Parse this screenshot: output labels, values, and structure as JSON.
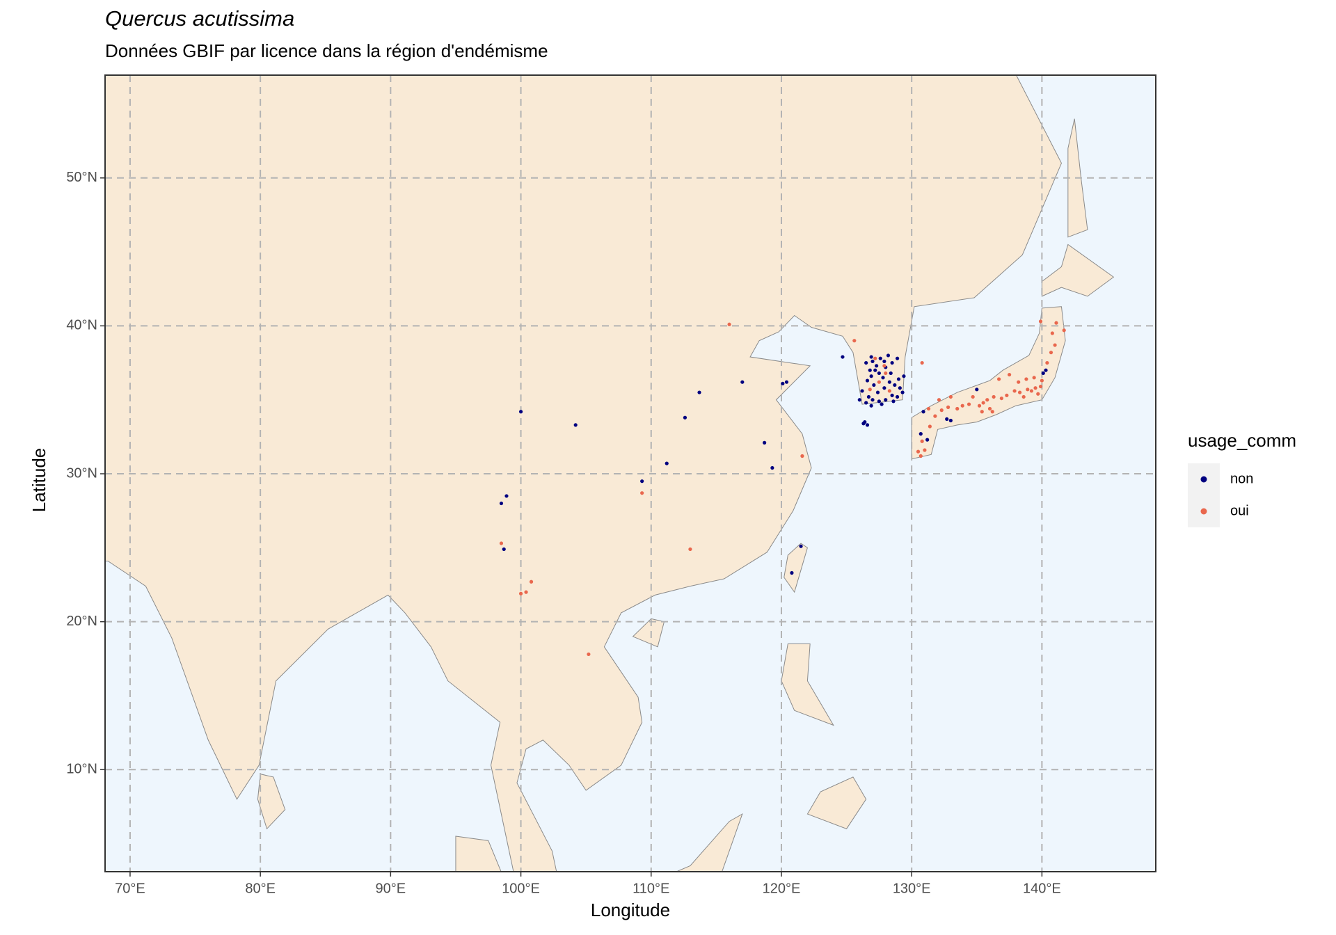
{
  "chart_data": {
    "type": "scatter",
    "title": "Quercus acutissima",
    "subtitle": "Données GBIF par licence dans la région d'endémisme",
    "x_label": "Longitude",
    "y_label": "Latitude",
    "legend_title": "usage_comm",
    "legend_position": "right",
    "grid": true,
    "xlim": [
      68.08,
      148.74
    ],
    "ylim": [
      3.1,
      56.95
    ],
    "xticks": [
      {
        "value": 70,
        "label": "70°E"
      },
      {
        "value": 80,
        "label": "80°E"
      },
      {
        "value": 90,
        "label": "90°E"
      },
      {
        "value": 100,
        "label": "100°E"
      },
      {
        "value": 110,
        "label": "110°E"
      },
      {
        "value": 120,
        "label": "120°E"
      },
      {
        "value": 130,
        "label": "130°E"
      },
      {
        "value": 140,
        "label": "140°E"
      }
    ],
    "yticks": [
      {
        "value": 10,
        "label": "10°N"
      },
      {
        "value": 20,
        "label": "20°N"
      },
      {
        "value": 30,
        "label": "30°N"
      },
      {
        "value": 40,
        "label": "40°N"
      },
      {
        "value": 50,
        "label": "50°N"
      }
    ],
    "series": [
      {
        "name": "non",
        "color": "#000080",
        "x": [
          126.5,
          127.0,
          127.3,
          126.8,
          127.5,
          128.0,
          128.5,
          128.9,
          127.8,
          128.3,
          128.7,
          129.1,
          129.3,
          128.9,
          128.5,
          128.0,
          127.5,
          127.0,
          126.7,
          126.5,
          126.9,
          127.4,
          127.9,
          126.6,
          127.1,
          126.9,
          127.6,
          128.2,
          127.9,
          126.9,
          126.3,
          126.6,
          126.4,
          127.2,
          128.4,
          129.0,
          129.4,
          126.2,
          126.0,
          127.7,
          128.6,
          100.0,
          104.2,
          113.7,
          112.6,
          117.0,
          111.2,
          109.3,
          118.7,
          119.3,
          98.9,
          98.5,
          98.7,
          120.1,
          120.4,
          121.5,
          120.8,
          124.7,
          130.9,
          130.7,
          131.2,
          132.7,
          133.0,
          135.0,
          140.1,
          140.3
        ],
        "values": [
          37.5,
          37.6,
          37.3,
          37.0,
          36.8,
          37.2,
          37.5,
          37.8,
          36.5,
          36.2,
          36.0,
          35.8,
          35.5,
          35.2,
          35.3,
          35.0,
          34.9,
          35.0,
          35.2,
          34.8,
          34.6,
          35.5,
          35.8,
          36.3,
          36.0,
          36.6,
          37.8,
          38.0,
          37.6,
          37.9,
          33.4,
          33.3,
          33.5,
          37.0,
          36.8,
          36.4,
          36.6,
          35.6,
          35.0,
          34.7,
          34.9,
          34.2,
          33.3,
          35.5,
          33.8,
          36.2,
          30.7,
          29.5,
          32.1,
          30.4,
          28.5,
          28.0,
          24.9,
          36.1,
          36.2,
          25.1,
          23.3,
          37.9,
          34.2,
          32.7,
          32.3,
          33.7,
          33.6,
          35.7,
          36.8,
          37.0
        ]
      },
      {
        "name": "oui",
        "color": "#e9674d",
        "x": [
          116.0,
          109.3,
          113.0,
          98.5,
          100.4,
          100.8,
          100.0,
          105.2,
          125.6,
          130.8,
          121.6,
          127.2,
          128.0,
          127.5,
          128.3,
          126.8,
          127.9,
          130.5,
          130.7,
          131.0,
          130.8,
          131.4,
          131.8,
          132.3,
          132.8,
          133.5,
          133.9,
          134.4,
          135.2,
          135.5,
          135.8,
          136.0,
          135.4,
          136.3,
          136.9,
          137.3,
          137.9,
          138.3,
          138.6,
          138.9,
          139.2,
          139.5,
          139.7,
          139.9,
          140.0,
          139.4,
          138.8,
          138.2,
          137.5,
          136.7,
          140.4,
          140.7,
          141.0,
          140.8,
          141.1,
          139.9,
          141.7,
          136.2,
          133.0,
          132.1,
          131.3,
          134.7
        ],
        "values": [
          40.1,
          28.7,
          24.9,
          25.3,
          22.0,
          22.7,
          21.9,
          17.8,
          39.0,
          37.5,
          31.2,
          37.8,
          36.8,
          36.2,
          35.6,
          35.7,
          37.3,
          31.5,
          31.2,
          31.6,
          32.2,
          33.2,
          33.9,
          34.3,
          34.5,
          34.4,
          34.6,
          34.7,
          34.6,
          34.8,
          35.0,
          34.4,
          34.2,
          35.2,
          35.1,
          35.3,
          35.6,
          35.5,
          35.2,
          35.7,
          35.6,
          35.8,
          35.4,
          35.9,
          36.3,
          36.5,
          36.4,
          36.2,
          36.7,
          36.4,
          37.5,
          38.2,
          38.7,
          39.5,
          40.2,
          40.3,
          39.7,
          34.2,
          35.2,
          35.0,
          34.4,
          35.2
        ]
      }
    ]
  }
}
